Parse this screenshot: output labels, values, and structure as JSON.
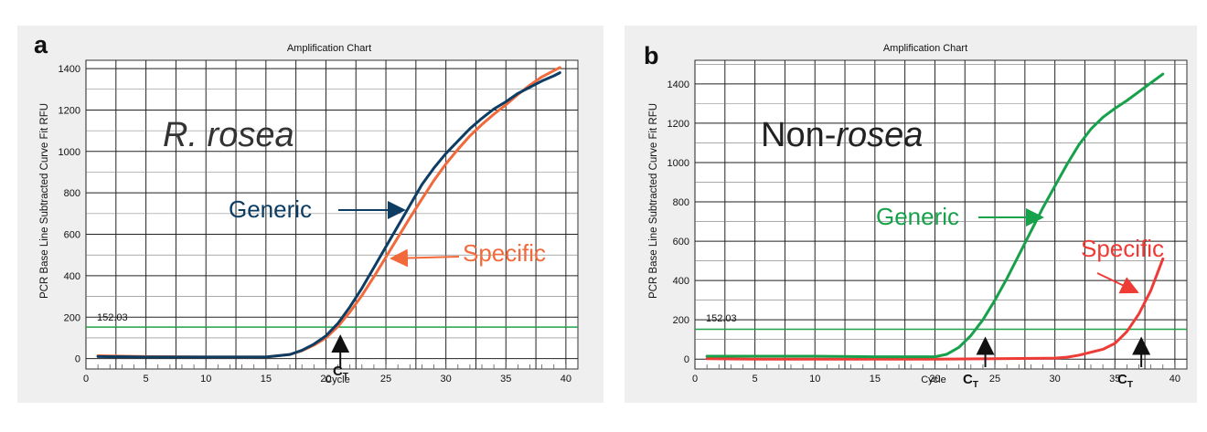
{
  "figure": {
    "panels": [
      {
        "letter": "a",
        "title": "Amplification Chart",
        "ylabel": "PCR Base Line Subtracted Curve Fit RFU",
        "xlabel": "Cycle",
        "annotation": {
          "text": "R. rosea",
          "style": "italic",
          "color": "#333333"
        },
        "threshold_label": "152.03",
        "labels": [
          {
            "text": "Generic",
            "color": "#0e3d63"
          },
          {
            "text": "Specific",
            "color": "#f26a3b"
          }
        ],
        "ct_label": {
          "main": "C",
          "sub": "T"
        }
      },
      {
        "letter": "b",
        "title": "Amplification Chart",
        "ylabel": "PCR Base Line Subtracted Curve Fit RFU",
        "xlabel": "Cycle",
        "annotation": {
          "text_plain": "Non-",
          "text_italic": "rosea",
          "color": "#222222"
        },
        "threshold_label": "152.03",
        "labels": [
          {
            "text": "Generic",
            "color": "#16a14a"
          },
          {
            "text": "Specific",
            "color": "#ee3b36"
          }
        ],
        "ct_label": {
          "main": "C",
          "sub": "T"
        }
      }
    ]
  },
  "chart_data": [
    {
      "type": "line",
      "title": "Amplification Chart",
      "xlabel": "Cycle",
      "ylabel": "PCR Base Line Subtracted Curve Fit RFU",
      "xlim": [
        0,
        41
      ],
      "ylim": [
        -50,
        1440
      ],
      "xticks": [
        0,
        5,
        10,
        15,
        20,
        25,
        30,
        35,
        40
      ],
      "yticks": [
        0,
        200,
        400,
        600,
        800,
        1000,
        1200,
        1400
      ],
      "grid": true,
      "threshold": 152.03,
      "series": [
        {
          "name": "Generic",
          "color": "#0e3d63",
          "x": [
            1,
            5,
            10,
            15,
            17,
            18,
            19,
            20,
            21,
            22,
            23,
            24,
            25,
            26,
            27,
            28,
            29,
            30,
            31,
            32,
            33,
            34,
            35,
            36,
            37,
            38,
            39,
            39.5
          ],
          "y": [
            10,
            8,
            8,
            8,
            20,
            40,
            70,
            110,
            170,
            250,
            340,
            440,
            540,
            640,
            740,
            840,
            920,
            990,
            1050,
            1110,
            1160,
            1205,
            1240,
            1280,
            1310,
            1340,
            1365,
            1380
          ]
        },
        {
          "name": "Specific",
          "color": "#f26a3b",
          "x": [
            1,
            5,
            10,
            15,
            17,
            18,
            19,
            20,
            21,
            22,
            23,
            24,
            25,
            26,
            27,
            28,
            29,
            30,
            31,
            32,
            33,
            34,
            35,
            36,
            37,
            38,
            39,
            39.5
          ],
          "y": [
            14,
            10,
            8,
            8,
            20,
            38,
            65,
            100,
            155,
            225,
            305,
            395,
            490,
            585,
            680,
            770,
            860,
            940,
            1010,
            1075,
            1130,
            1180,
            1225,
            1275,
            1320,
            1360,
            1390,
            1405
          ]
        }
      ],
      "ct_cycle": 21.2,
      "ct": [
        21.2
      ]
    },
    {
      "type": "line",
      "title": "Amplification Chart",
      "xlabel": "Cycle",
      "ylabel": "PCR Base Line Subtracted Curve Fit RFU",
      "xlim": [
        0,
        41
      ],
      "ylim": [
        -50,
        1520
      ],
      "xticks": [
        0,
        5,
        10,
        15,
        20,
        25,
        30,
        35,
        40
      ],
      "yticks": [
        0,
        200,
        400,
        600,
        800,
        1000,
        1200,
        1400
      ],
      "grid": true,
      "threshold": 152.03,
      "series": [
        {
          "name": "Generic",
          "color": "#16a14a",
          "x": [
            1,
            5,
            10,
            15,
            18,
            20,
            21,
            22,
            23,
            24,
            25,
            26,
            27,
            28,
            29,
            30,
            31,
            32,
            33,
            34,
            35,
            36,
            37,
            38,
            39
          ],
          "y": [
            15,
            15,
            15,
            12,
            12,
            12,
            25,
            60,
            120,
            200,
            300,
            410,
            530,
            650,
            770,
            880,
            990,
            1090,
            1170,
            1230,
            1275,
            1315,
            1360,
            1405,
            1450
          ]
        },
        {
          "name": "Specific",
          "color": "#ee3b36",
          "x": [
            1,
            5,
            10,
            15,
            20,
            25,
            30,
            31,
            32,
            33,
            34,
            35,
            36,
            37,
            38,
            39
          ],
          "y": [
            2,
            0,
            0,
            0,
            0,
            2,
            5,
            10,
            20,
            35,
            50,
            80,
            140,
            230,
            350,
            510
          ]
        }
      ],
      "ct_cycle": [
        24.2,
        37.2
      ],
      "ct": [
        24.2,
        37.2
      ]
    }
  ]
}
